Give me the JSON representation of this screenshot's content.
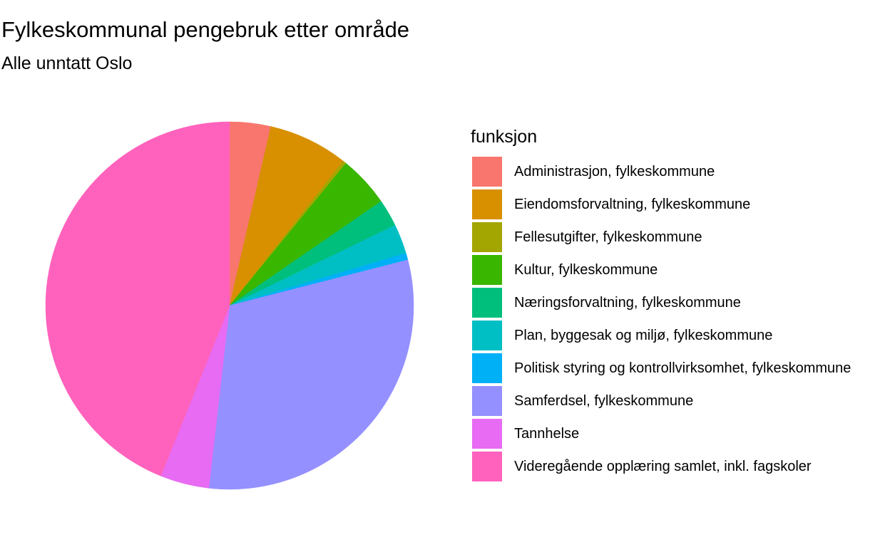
{
  "chart_data": {
    "type": "pie",
    "title": "Fylkeskommunal pengebruk etter område",
    "subtitle": "Alle unntatt Oslo",
    "legend_title": "funksjon",
    "legend_placement": "right",
    "slices": [
      {
        "label": "Administrasjon, fylkeskommune",
        "value": 3.6,
        "color": "#F8766D"
      },
      {
        "label": "Eiendomsforvaltning, fylkeskommune",
        "value": 7.0,
        "color": "#D89000"
      },
      {
        "label": "Fellesutgifter, fylkeskommune",
        "value": 0.3,
        "color": "#A3A500"
      },
      {
        "label": "Kultur, fylkeskommune",
        "value": 4.5,
        "color": "#39B600"
      },
      {
        "label": "Næringsforvaltning, fylkeskommune",
        "value": 2.4,
        "color": "#00BF7D"
      },
      {
        "label": "Plan, byggesak og miljø, fylkeskommune",
        "value": 2.6,
        "color": "#00BFC4"
      },
      {
        "label": "Politisk styring og kontrollvirksomhet, fylkeskommune",
        "value": 0.6,
        "color": "#00B0F6"
      },
      {
        "label": "Samferdsel, fylkeskommune",
        "value": 30.8,
        "color": "#9590FF"
      },
      {
        "label": "Tannhelse",
        "value": 4.3,
        "color": "#E76BF3"
      },
      {
        "label": "Videregående opplæring samlet, inkl. fagskoler",
        "value": 43.9,
        "color": "#FF62BC"
      }
    ]
  }
}
